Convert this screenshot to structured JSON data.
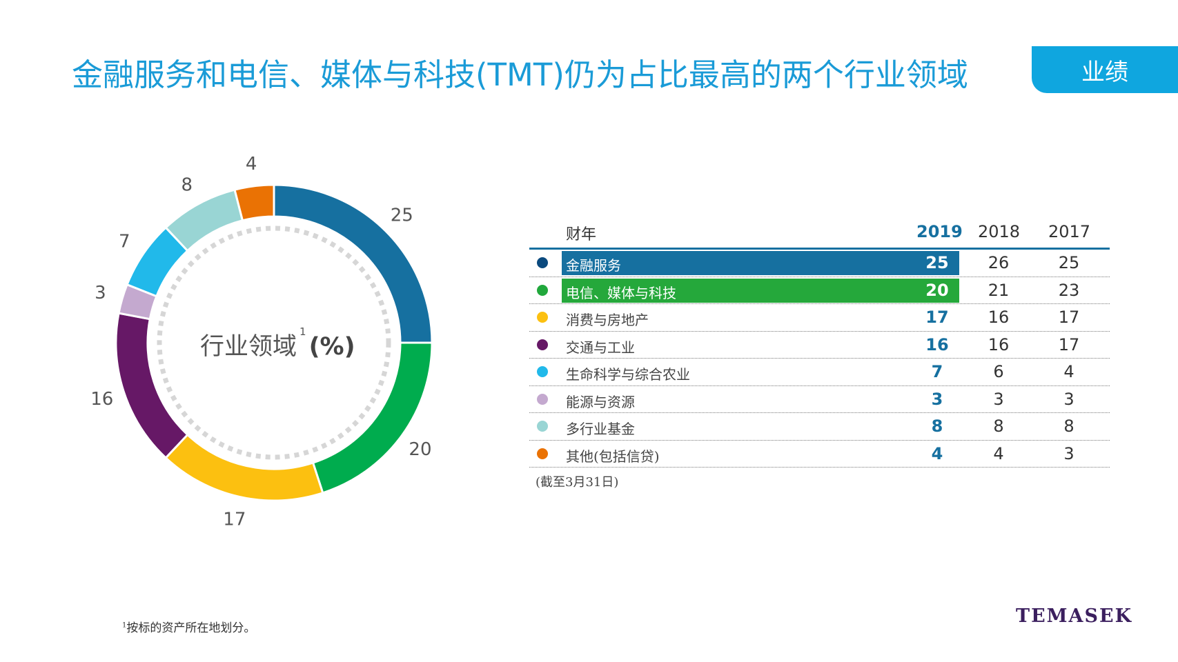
{
  "title": "金融服务和电信、媒体与科技(TMT)仍为占比最高的两个行业领域",
  "tab_label": "业绩",
  "chart_data": {
    "type": "pie",
    "variant": "donut",
    "center_label": "行业领域",
    "center_superscript": "1",
    "center_unit": "(%)",
    "categories": [
      "金融服务",
      "电信、媒体与科技",
      "消费与房地产",
      "交通与工业",
      "能源与资源",
      "生命科学与综合农业",
      "多行业基金",
      "其他(包括信贷)"
    ],
    "values": [
      25,
      20,
      17,
      16,
      3,
      7,
      8,
      4
    ],
    "labels": [
      "25",
      "20",
      "17",
      "16",
      "3",
      "7",
      "8",
      "4"
    ],
    "colors": [
      "#1670a0",
      "#00ac4e",
      "#fcc010",
      "#661866",
      "#c4a9cf",
      "#21b9ea",
      "#99d5d4",
      "#ea7204"
    ]
  },
  "table": {
    "header": {
      "label": "财年",
      "y2019": "2019",
      "y2018": "2018",
      "y2017": "2017"
    },
    "rows": [
      {
        "label": "金融服务",
        "y2019": "25",
        "y2018": "26",
        "y2017": "25",
        "color": "#0b4a7e",
        "highlight": "#1670a0"
      },
      {
        "label": "电信、媒体与科技",
        "y2019": "20",
        "y2018": "21",
        "y2017": "23",
        "color": "#21a83c",
        "highlight": "#25a83b"
      },
      {
        "label": "消费与房地产",
        "y2019": "17",
        "y2018": "16",
        "y2017": "17",
        "color": "#fcc010"
      },
      {
        "label": "交通与工业",
        "y2019": "16",
        "y2018": "16",
        "y2017": "17",
        "color": "#661866"
      },
      {
        "label": "生命科学与综合农业",
        "y2019": "7",
        "y2018": "6",
        "y2017": "4",
        "color": "#21b9ea"
      },
      {
        "label": "能源与资源",
        "y2019": "3",
        "y2018": "3",
        "y2017": "3",
        "color": "#c4a9cf"
      },
      {
        "label": "多行业基金",
        "y2019": "8",
        "y2018": "8",
        "y2017": "8",
        "color": "#99d5d4"
      },
      {
        "label": "其他(包括信贷)",
        "y2019": "4",
        "y2018": "4",
        "y2017": "3",
        "color": "#ea7204"
      }
    ],
    "note": "(截至3月31日)"
  },
  "footnote": {
    "mark": "1",
    "text": "按标的资产所在地划分。"
  },
  "logo": "TEMASEK"
}
